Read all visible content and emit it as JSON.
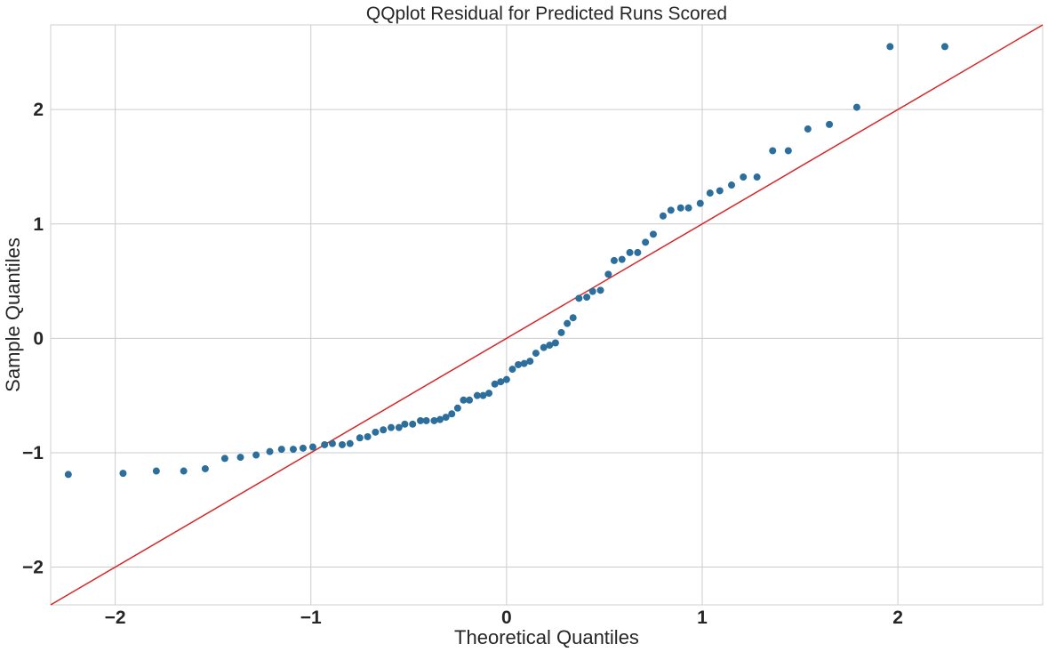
{
  "chart_data": {
    "type": "scatter",
    "title": "QQplot Residual for Predicted Runs Scored",
    "xlabel": "Theoretical Quantiles",
    "ylabel": "Sample Quantiles",
    "xlim": [
      -2.33,
      2.74
    ],
    "ylim": [
      -2.33,
      2.74
    ],
    "xticks": [
      -2,
      -1,
      0,
      1,
      2
    ],
    "yticks": [
      -2,
      -1,
      0,
      1,
      2
    ],
    "xtick_labels": [
      "−2",
      "−1",
      "0",
      "1",
      "2"
    ],
    "ytick_labels": [
      "−2",
      "−1",
      "0",
      "1",
      "2"
    ],
    "grid": true,
    "reference_line": {
      "slope": 1,
      "intercept": 0,
      "color": "#d62728"
    },
    "marker_color": "#2c6f9c",
    "points": [
      [
        -2.24,
        -1.19
      ],
      [
        -1.96,
        -1.18
      ],
      [
        -1.79,
        -1.16
      ],
      [
        -1.65,
        -1.16
      ],
      [
        -1.54,
        -1.14
      ],
      [
        -1.44,
        -1.05
      ],
      [
        -1.36,
        -1.04
      ],
      [
        -1.28,
        -1.02
      ],
      [
        -1.21,
        -0.99
      ],
      [
        -1.15,
        -0.97
      ],
      [
        -1.09,
        -0.97
      ],
      [
        -1.04,
        -0.96
      ],
      [
        -0.99,
        -0.95
      ],
      [
        -0.93,
        -0.93
      ],
      [
        -0.89,
        -0.92
      ],
      [
        -0.84,
        -0.93
      ],
      [
        -0.8,
        -0.92
      ],
      [
        -0.75,
        -0.87
      ],
      [
        -0.71,
        -0.86
      ],
      [
        -0.67,
        -0.82
      ],
      [
        -0.63,
        -0.8
      ],
      [
        -0.59,
        -0.78
      ],
      [
        -0.55,
        -0.78
      ],
      [
        -0.52,
        -0.75
      ],
      [
        -0.48,
        -0.75
      ],
      [
        -0.44,
        -0.72
      ],
      [
        -0.41,
        -0.72
      ],
      [
        -0.37,
        -0.72
      ],
      [
        -0.34,
        -0.71
      ],
      [
        -0.31,
        -0.69
      ],
      [
        -0.28,
        -0.66
      ],
      [
        -0.25,
        -0.61
      ],
      [
        -0.22,
        -0.54
      ],
      [
        -0.19,
        -0.54
      ],
      [
        -0.15,
        -0.5
      ],
      [
        -0.12,
        -0.5
      ],
      [
        -0.09,
        -0.48
      ],
      [
        -0.06,
        -0.4
      ],
      [
        -0.03,
        -0.38
      ],
      [
        0.0,
        -0.36
      ],
      [
        0.03,
        -0.27
      ],
      [
        0.06,
        -0.23
      ],
      [
        0.09,
        -0.22
      ],
      [
        0.12,
        -0.2
      ],
      [
        0.15,
        -0.13
      ],
      [
        0.19,
        -0.08
      ],
      [
        0.22,
        -0.06
      ],
      [
        0.25,
        -0.04
      ],
      [
        0.28,
        0.05
      ],
      [
        0.31,
        0.13
      ],
      [
        0.34,
        0.18
      ],
      [
        0.37,
        0.35
      ],
      [
        0.41,
        0.36
      ],
      [
        0.44,
        0.41
      ],
      [
        0.48,
        0.42
      ],
      [
        0.52,
        0.56
      ],
      [
        0.55,
        0.68
      ],
      [
        0.59,
        0.69
      ],
      [
        0.63,
        0.75
      ],
      [
        0.67,
        0.75
      ],
      [
        0.71,
        0.84
      ],
      [
        0.75,
        0.91
      ],
      [
        0.8,
        1.07
      ],
      [
        0.84,
        1.12
      ],
      [
        0.89,
        1.14
      ],
      [
        0.93,
        1.14
      ],
      [
        0.99,
        1.18
      ],
      [
        1.04,
        1.27
      ],
      [
        1.09,
        1.29
      ],
      [
        1.15,
        1.34
      ],
      [
        1.21,
        1.41
      ],
      [
        1.28,
        1.41
      ],
      [
        1.36,
        1.64
      ],
      [
        1.44,
        1.64
      ],
      [
        1.54,
        1.83
      ],
      [
        1.65,
        1.87
      ],
      [
        1.79,
        2.02
      ],
      [
        1.96,
        2.55
      ],
      [
        2.24,
        2.55
      ]
    ]
  }
}
